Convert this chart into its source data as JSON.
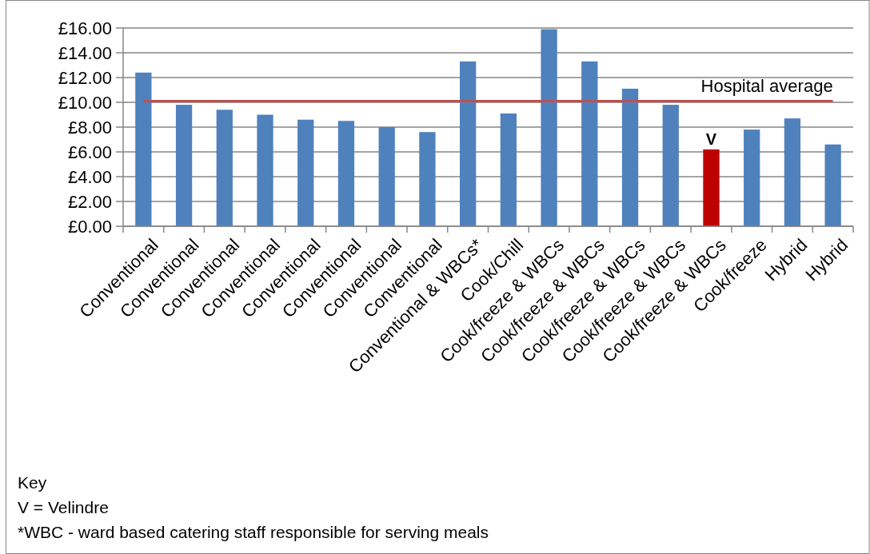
{
  "chart_data": {
    "type": "bar",
    "categories": [
      "Conventional",
      "Conventional",
      "Conventional",
      "Conventional",
      "Conventional",
      "Conventional",
      "Conventional",
      "Conventional",
      "Conventional & WBCs*",
      "Cook/Chill",
      "Cook/freeze & WBCs",
      "Cook/freeze & WBCs",
      "Cook/freeze & WBCs",
      "Cook/freeze & WBCs",
      "Cook/freeze & WBCs",
      "Cook/freeze",
      "Hybrid",
      "Hybrid"
    ],
    "values": [
      12.4,
      9.8,
      9.4,
      9.0,
      8.6,
      8.5,
      8.0,
      7.6,
      13.3,
      9.1,
      15.9,
      13.3,
      11.1,
      9.8,
      6.2,
      7.8,
      8.7,
      6.6
    ],
    "value_labels": [
      null,
      null,
      null,
      null,
      null,
      null,
      null,
      null,
      null,
      null,
      null,
      null,
      null,
      null,
      "V",
      null,
      null,
      null
    ],
    "colors": [
      "#4f81bd",
      "#4f81bd",
      "#4f81bd",
      "#4f81bd",
      "#4f81bd",
      "#4f81bd",
      "#4f81bd",
      "#4f81bd",
      "#4f81bd",
      "#4f81bd",
      "#4f81bd",
      "#4f81bd",
      "#4f81bd",
      "#4f81bd",
      "#c00000",
      "#4f81bd",
      "#4f81bd",
      "#4f81bd"
    ],
    "ylim": [
      0,
      16
    ],
    "yticks": [
      {
        "value": 0,
        "label": "£0.00"
      },
      {
        "value": 2,
        "label": "£2.00"
      },
      {
        "value": 4,
        "label": "£4.00"
      },
      {
        "value": 6,
        "label": "£6.00"
      },
      {
        "value": 8,
        "label": "£8.00"
      },
      {
        "value": 10,
        "label": "£10.00"
      },
      {
        "value": 12,
        "label": "£12.00"
      },
      {
        "value": 14,
        "label": "£14.00"
      },
      {
        "value": 16,
        "label": "£16.00"
      }
    ],
    "grid": "y",
    "ref_lines": [
      {
        "axis": "y",
        "value": 10.1,
        "label": "Hospital average",
        "color": "#c0504d"
      }
    ],
    "annotations": [
      "Key",
      "V = Velindre",
      "*WBC - ward based catering staff responsible for serving meals"
    ]
  }
}
